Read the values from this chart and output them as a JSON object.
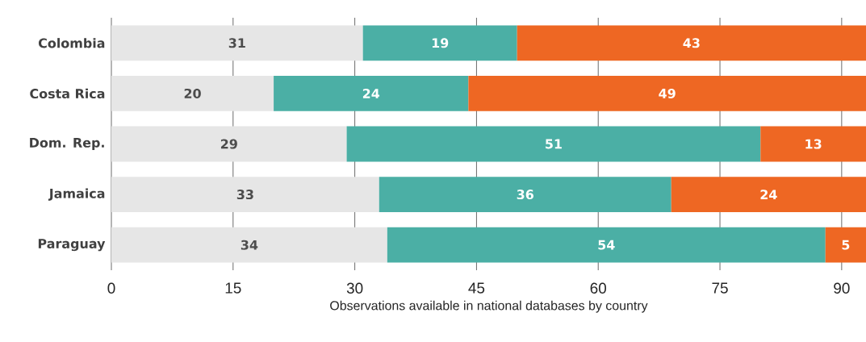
{
  "chart_data": {
    "type": "bar",
    "orientation": "horizontal",
    "stacked": true,
    "xlabel": "Observations available in national databases by country",
    "categories": [
      "Colombia",
      "Costa Rica",
      "Dom. Rep.",
      "Jamaica",
      "Paraguay"
    ],
    "series": [
      {
        "color": "#e6e6e6",
        "values": [
          31,
          20,
          29,
          33,
          34
        ]
      },
      {
        "color": "#4bafa5",
        "values": [
          19,
          24,
          51,
          36,
          54
        ]
      },
      {
        "color": "#ee6723",
        "values": [
          43,
          49,
          13,
          24,
          5
        ]
      }
    ],
    "xlim": [
      0,
      93
    ],
    "xticks": [
      0,
      15,
      30,
      45,
      60,
      75,
      90
    ],
    "grid": "x",
    "data_labels": true
  }
}
